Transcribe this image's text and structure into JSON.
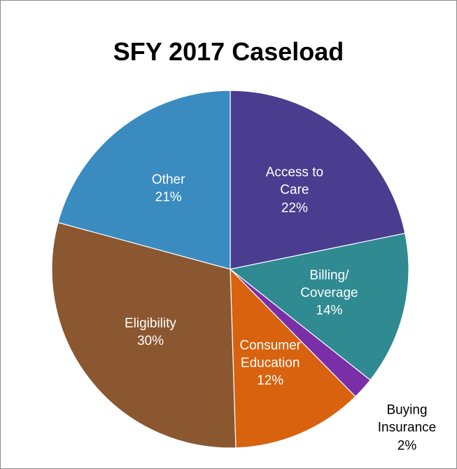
{
  "chart_data": {
    "type": "pie",
    "title": "SFY 2017 Caseload",
    "categories": [
      "Access to Care",
      "Billing/ Coverage",
      "Buying Insurance",
      "Consumer Education",
      "Eligibility",
      "Other"
    ],
    "values": [
      22,
      14,
      2,
      12,
      30,
      21
    ],
    "value_labels": [
      "22%",
      "14%",
      "2%",
      "12%",
      "30%",
      "21%"
    ],
    "colors": [
      "#4a3d8f",
      "#2f8a92",
      "#7a2fa8",
      "#d8620e",
      "#8a5730",
      "#3a8cc0"
    ]
  }
}
